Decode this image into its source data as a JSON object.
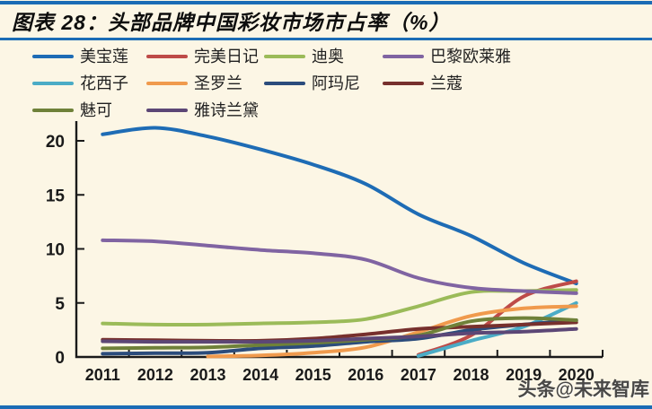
{
  "header": {
    "title": "图表 28：头部品牌中国彩妆市场市占率（%）"
  },
  "watermark": "头条@未来智库",
  "theme": {
    "background": "#FCF6E5",
    "rule_color": "#1B6CB5",
    "axis_color": "#1a1a1a",
    "text_color": "#1a1a1a"
  },
  "chart_data": {
    "type": "line",
    "title": "头部品牌中国彩妆市场市占率（%）",
    "xlabel": "",
    "ylabel": "",
    "x": [
      2011,
      2012,
      2013,
      2014,
      2015,
      2016,
      2017,
      2018,
      2019,
      2020
    ],
    "yticks": [
      0,
      5,
      10,
      15,
      20
    ],
    "ylim": [
      0,
      22
    ],
    "grid": false,
    "legend_position": "top",
    "line_style": "smooth",
    "series": [
      {
        "name": "美宝莲",
        "color": "#1E6CB5",
        "values": [
          20.6,
          21.2,
          20.4,
          19.2,
          17.8,
          16.0,
          13.2,
          11.2,
          8.7,
          6.8
        ]
      },
      {
        "name": "完美日记",
        "color": "#BE4B48",
        "values": [
          null,
          null,
          null,
          null,
          null,
          null,
          0.2,
          2.0,
          5.6,
          7.0
        ]
      },
      {
        "name": "迪奥",
        "color": "#9BBB59",
        "values": [
          3.1,
          3.0,
          3.0,
          3.1,
          3.2,
          3.5,
          4.7,
          6.0,
          6.1,
          6.2
        ]
      },
      {
        "name": "巴黎欧莱雅",
        "color": "#8064A2",
        "values": [
          10.8,
          10.7,
          10.3,
          9.9,
          9.6,
          9.0,
          7.3,
          6.4,
          6.1,
          5.9
        ]
      },
      {
        "name": "花西子",
        "color": "#4BACC6",
        "values": [
          null,
          null,
          null,
          null,
          null,
          null,
          0.1,
          1.5,
          2.8,
          5.0
        ]
      },
      {
        "name": "圣罗兰",
        "color": "#F09A4D",
        "values": [
          null,
          null,
          0.05,
          0.15,
          0.4,
          0.9,
          2.3,
          3.8,
          4.5,
          4.7
        ]
      },
      {
        "name": "阿玛尼",
        "color": "#2B4C7C",
        "values": [
          0.3,
          0.35,
          0.4,
          0.8,
          1.0,
          1.4,
          1.7,
          2.5,
          3.0,
          3.4
        ]
      },
      {
        "name": "兰蔻",
        "color": "#77302D",
        "values": [
          1.6,
          1.55,
          1.5,
          1.5,
          1.7,
          2.1,
          2.6,
          2.8,
          3.0,
          3.2
        ]
      },
      {
        "name": "魅可",
        "color": "#6F8139",
        "values": [
          0.8,
          0.85,
          0.9,
          1.1,
          1.3,
          1.6,
          2.0,
          3.3,
          3.6,
          3.4
        ]
      },
      {
        "name": "雅诗兰黛",
        "color": "#5C4776",
        "values": [
          1.45,
          1.4,
          1.4,
          1.4,
          1.5,
          1.7,
          1.9,
          2.2,
          2.35,
          2.6
        ]
      }
    ]
  }
}
